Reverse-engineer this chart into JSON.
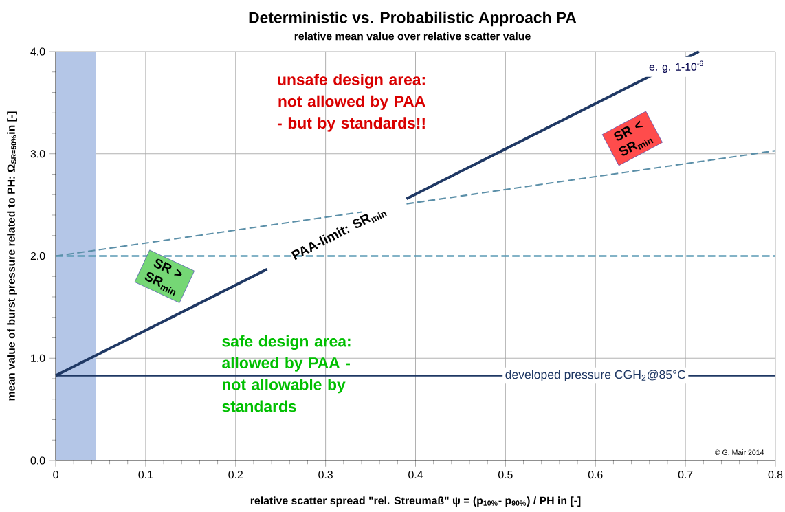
{
  "chart_data": {
    "type": "line",
    "title": "Deterministic vs. Probabilistic Approach PA",
    "subtitle": "relative mean value over relative scatter value",
    "xlabel": "relative scatter spread \"rel. Streumaß\" ψ = (p$_{10%}$- p$_{90%}$) / PH      in [-]",
    "ylabel": "mean value of burst pressure related to PH: Ω$_{SR=50%}$in [-]",
    "xlim": [
      0,
      0.8
    ],
    "ylim": [
      0,
      4.0
    ],
    "xticks": [
      0,
      0.1,
      0.2,
      0.3,
      0.4,
      0.5,
      0.6,
      0.7,
      0.8
    ],
    "yticks": [
      {
        "value": 0,
        "label": "0.0"
      },
      {
        "value": 1,
        "label": "1.0"
      },
      {
        "value": 2,
        "label": "2.0"
      },
      {
        "value": 3,
        "label": "3.0"
      },
      {
        "value": 4,
        "label": "4.0"
      }
    ],
    "grid": true,
    "marker": "none",
    "series": [
      {
        "color": "#1f3864",
        "line_style": "solid",
        "x": [
          0,
          0.235,
          0.3,
          0.39,
          0.715
        ],
        "values": [
          0.83,
          1.87,
          null,
          2.56,
          4.0
        ]
      },
      {
        "color": "#5b8fa8",
        "line_style": "dashed",
        "x": [
          0,
          0.34
        ],
        "values": [
          2.0,
          2.43
        ]
      },
      {
        "color": "#5b8fa8",
        "line_style": "dashed",
        "x": [
          0.39,
          0.8
        ],
        "values": [
          2.51,
          3.03
        ]
      }
    ],
    "ref_lines": [
      {
        "axis": "y",
        "value": 2.0,
        "color": "#5b9bb5",
        "line_style": "dashed"
      },
      {
        "axis": "y",
        "value": 0.83,
        "color": "#1f3864",
        "line_style": "solid",
        "label": "developed pressure CGH$_{2}$@85°C"
      }
    ],
    "bands": [
      {
        "axis": "x",
        "from": 0,
        "to": 0.045,
        "color": "#b4c6e7"
      }
    ],
    "annotations": [
      "PAA-limit: SR$_{min}$",
      "unsafe design area: not allowed by PAA - but by standards!!",
      "safe design area: allowed by PAA - not allowable by standards",
      "SR > SR$_{min}$",
      "SR < SR$_{min}$",
      "e. g. 1-10$^{-6}$",
      "© G. Mair 2014"
    ]
  }
}
